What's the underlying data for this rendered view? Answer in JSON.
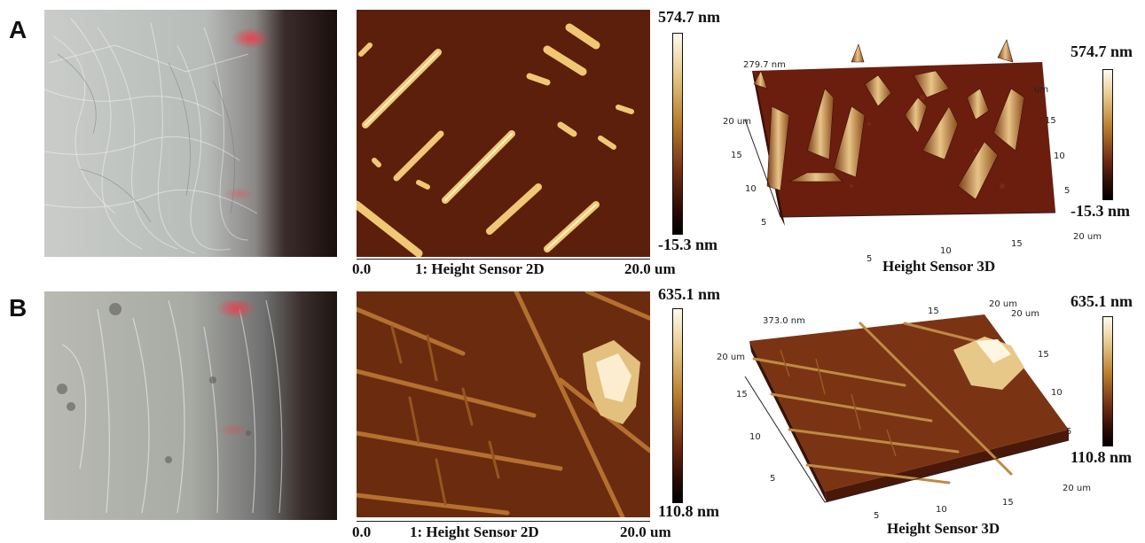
{
  "figure": {
    "panels": [
      {
        "id": "A",
        "letter": "A",
        "colorbar_2d": {
          "max": "574.7 nm",
          "min": "-15.3 nm"
        },
        "axis_2d": {
          "start": "0.0",
          "caption": "1:  Height Sensor   2D",
          "end": "20.0 um"
        },
        "plot3d": {
          "zlabel": "279.7 nm",
          "left_ticks": [
            "20 um",
            "15",
            "10",
            "5"
          ],
          "bottom_ticks": [
            "5",
            "10",
            "15",
            "20 um"
          ],
          "right_ticks": [
            "um",
            "15",
            "10",
            "5"
          ],
          "caption": "Height Sensor   3D"
        },
        "colorbar_3d": {
          "max": "574.7 nm",
          "min": "-15.3 nm"
        }
      },
      {
        "id": "B",
        "letter": "B",
        "colorbar_2d": {
          "max": "635.1 nm",
          "min": "110.8 nm"
        },
        "axis_2d": {
          "start": "0.0",
          "caption": "1:  Height Sensor  2D",
          "end": "20.0 um"
        },
        "plot3d": {
          "zlabel": "373.0 nm",
          "left_ticks": [
            "20 um",
            "15",
            "10",
            "5"
          ],
          "bottom_ticks": [
            "5",
            "10",
            "15",
            "20 um"
          ],
          "right_ticks": [
            "15",
            "10",
            "5"
          ],
          "top_ticks": [
            "15",
            "20 um",
            "20 um"
          ],
          "caption": "Height Sensor   3D"
        },
        "colorbar_3d": {
          "max": "635.1 nm",
          "min": "110.8 nm"
        }
      }
    ]
  }
}
